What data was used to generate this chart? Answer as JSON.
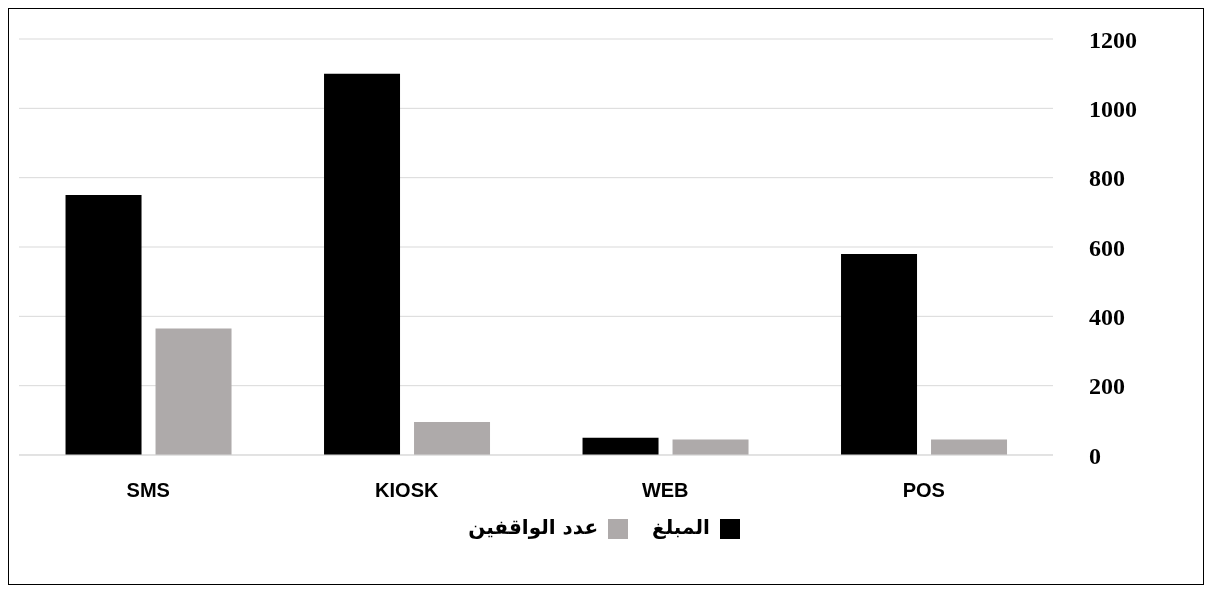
{
  "chart_data": {
    "type": "bar",
    "categories": [
      "SMS",
      "KIOSK",
      "WEB",
      "POS"
    ],
    "series": [
      {
        "name": "المبلغ",
        "color": "#000000",
        "values": [
          750,
          1100,
          50,
          580
        ]
      },
      {
        "name": "عدد الواقفين",
        "color": "#aeaaaa",
        "values": [
          365,
          95,
          45,
          45
        ]
      }
    ],
    "ylim": [
      0,
      1200
    ],
    "yticks": [
      0,
      200,
      400,
      600,
      800,
      1000,
      1200
    ],
    "grid": "y",
    "legend": "bottom"
  }
}
